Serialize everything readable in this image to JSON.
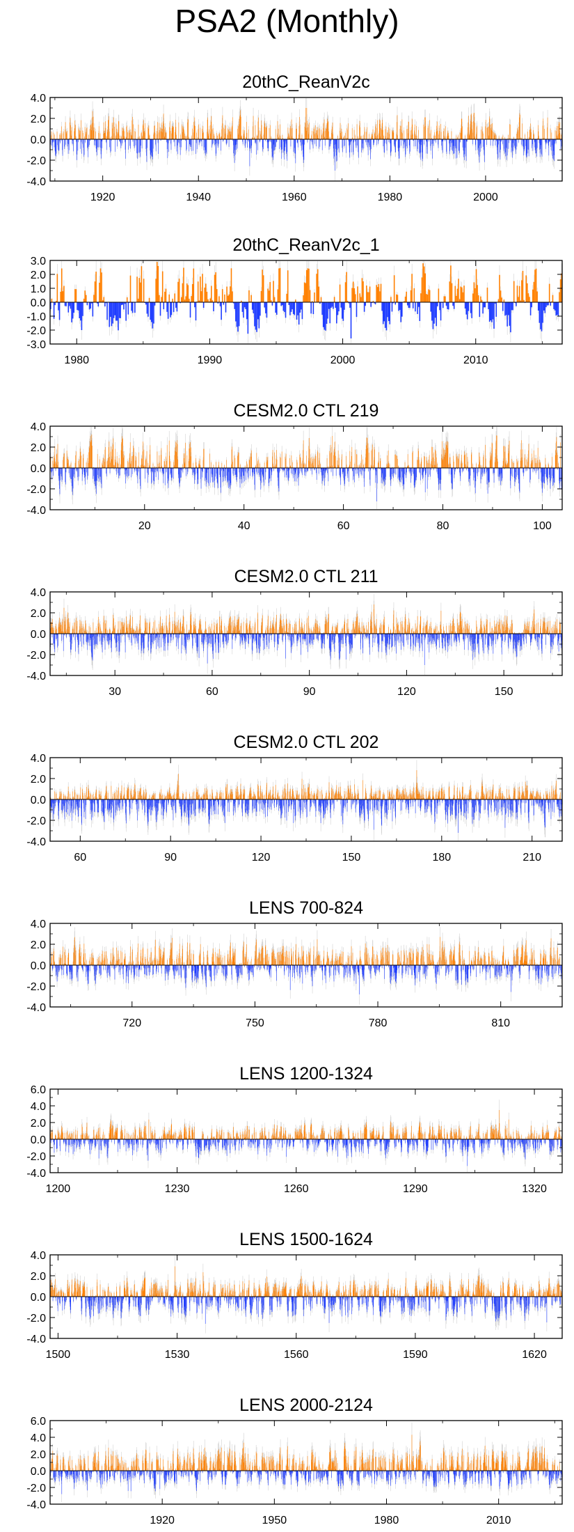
{
  "title": "PSA2 (Monthly)",
  "colors": {
    "positive": "#ff8000",
    "negative": "#1e3cff",
    "faint": "#c8c8c8",
    "zero_line": "#000000"
  },
  "chart_data": [
    {
      "type": "bar",
      "title": "20thC_ReanV2c",
      "x_range": [
        1909,
        2016
      ],
      "ylim": [
        -4,
        4
      ],
      "y_ticks": [
        4,
        2,
        0,
        -2,
        -4
      ],
      "y_tick_labels": [
        "4.0",
        "2.0",
        "0.0",
        "-2.0",
        "-4.0"
      ],
      "x_ticks": [
        1920,
        1940,
        1960,
        1980,
        2000
      ],
      "x_tick_labels": [
        "1920",
        "1940",
        "1960",
        "1980",
        "2000"
      ],
      "monthly_anomaly_extremes": {
        "max": 3.0,
        "min": -3.0
      }
    },
    {
      "type": "bar",
      "title": "20thC_ReanV2c_1",
      "x_range": [
        1978,
        2016.5
      ],
      "ylim": [
        -3,
        3
      ],
      "y_ticks": [
        3,
        2,
        1,
        0,
        -1,
        -2,
        -3
      ],
      "y_tick_labels": [
        "3.0",
        "2.0",
        "1.0",
        "0.0",
        "-1.0",
        "-2.0",
        "-3.0"
      ],
      "x_ticks": [
        1980,
        1990,
        2000,
        2010
      ],
      "x_tick_labels": [
        "1980",
        "1990",
        "2000",
        "2010"
      ],
      "monthly_anomaly_extremes": {
        "max": 2.9,
        "min": -2.6
      }
    },
    {
      "type": "bar",
      "title": "CESM2.0 CTL 219",
      "x_range": [
        1,
        104
      ],
      "ylim": [
        -4,
        4
      ],
      "y_ticks": [
        4,
        2,
        0,
        -2,
        -4
      ],
      "y_tick_labels": [
        "4.0",
        "2.0",
        "0.0",
        "-2.0",
        "-4.0"
      ],
      "x_ticks": [
        20,
        40,
        60,
        80,
        100
      ],
      "x_tick_labels": [
        "20",
        "40",
        "60",
        "80",
        "100"
      ],
      "monthly_anomaly_extremes": {
        "max": 3.2,
        "min": -3.2
      }
    },
    {
      "type": "bar",
      "title": "CESM2.0 CTL 211",
      "x_range": [
        10,
        168
      ],
      "ylim": [
        -4,
        4
      ],
      "y_ticks": [
        4,
        2,
        0,
        -2,
        -4
      ],
      "y_tick_labels": [
        "4.0",
        "2.0",
        "0.0",
        "-2.0",
        "-4.0"
      ],
      "x_ticks": [
        30,
        60,
        90,
        120,
        150
      ],
      "x_tick_labels": [
        "30",
        "60",
        "90",
        "120",
        "150"
      ],
      "monthly_anomaly_extremes": {
        "max": 2.8,
        "min": -3.0
      }
    },
    {
      "type": "bar",
      "title": "CESM2.0 CTL 202",
      "x_range": [
        50,
        220
      ],
      "ylim": [
        -4,
        4
      ],
      "y_ticks": [
        4,
        2,
        0,
        -2,
        -4
      ],
      "y_tick_labels": [
        "4.0",
        "2.0",
        "0.0",
        "-2.0",
        "-4.0"
      ],
      "x_ticks": [
        60,
        90,
        120,
        150,
        180,
        210
      ],
      "x_tick_labels": [
        "60",
        "90",
        "120",
        "150",
        "180",
        "210"
      ],
      "monthly_anomaly_extremes": {
        "max": 2.8,
        "min": -3.2
      }
    },
    {
      "type": "bar",
      "title": "LENS 700-824",
      "x_range": [
        700,
        825
      ],
      "ylim": [
        -4,
        4
      ],
      "y_ticks": [
        4,
        2,
        0,
        -2,
        -4
      ],
      "y_tick_labels": [
        "4.0",
        "2.0",
        "0.0",
        "-2.0",
        "-4.0"
      ],
      "x_ticks": [
        720,
        750,
        780,
        810
      ],
      "x_tick_labels": [
        "720",
        "750",
        "780",
        "810"
      ],
      "monthly_anomaly_extremes": {
        "max": 2.7,
        "min": -2.8
      }
    },
    {
      "type": "bar",
      "title": "LENS 1200-1324",
      "x_range": [
        1198,
        1327
      ],
      "ylim": [
        -4,
        6
      ],
      "y_ticks": [
        6,
        4,
        2,
        0,
        -2,
        -4
      ],
      "y_tick_labels": [
        "6.0",
        "4.0",
        "2.0",
        "0.0",
        "-2.0",
        "-4.0"
      ],
      "x_ticks": [
        1200,
        1230,
        1260,
        1290,
        1320
      ],
      "x_tick_labels": [
        "1200",
        "1230",
        "1260",
        "1290",
        "1320"
      ],
      "monthly_anomaly_extremes": {
        "max": 3.5,
        "min": -3.2
      }
    },
    {
      "type": "bar",
      "title": "LENS 1500-1624",
      "x_range": [
        1498,
        1627
      ],
      "ylim": [
        -4,
        4
      ],
      "y_ticks": [
        4,
        2,
        0,
        -2,
        -4
      ],
      "y_tick_labels": [
        "4.0",
        "2.0",
        "0.0",
        "-2.0",
        "-4.0"
      ],
      "x_ticks": [
        1500,
        1530,
        1560,
        1590,
        1620
      ],
      "x_tick_labels": [
        "1500",
        "1530",
        "1560",
        "1590",
        "1620"
      ],
      "monthly_anomaly_extremes": {
        "max": 2.9,
        "min": -2.6
      }
    },
    {
      "type": "bar",
      "title": "LENS 2000-2124",
      "x_range": [
        1890,
        2027
      ],
      "ylim": [
        -4,
        6
      ],
      "y_ticks": [
        6,
        4,
        2,
        0,
        -2,
        -4
      ],
      "y_tick_labels": [
        "6.0",
        "4.0",
        "2.0",
        "0.0",
        "-2.0",
        "-4.0"
      ],
      "x_ticks": [
        1920,
        1950,
        1980,
        2010
      ],
      "x_tick_labels": [
        "1920",
        "1950",
        "1980",
        "2010"
      ],
      "monthly_anomaly_extremes": {
        "max": 4.3,
        "min": -2.8
      }
    }
  ]
}
